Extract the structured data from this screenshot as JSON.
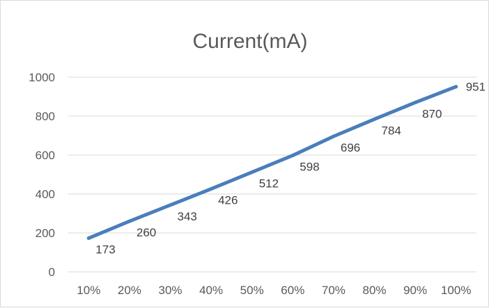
{
  "chart_data": {
    "type": "line",
    "title": "Current(mA)",
    "categories": [
      "10%",
      "20%",
      "30%",
      "40%",
      "50%",
      "60%",
      "70%",
      "80%",
      "90%",
      "100%"
    ],
    "series": [
      {
        "values": [
          173,
          260,
          343,
          426,
          512,
          598,
          696,
          784,
          870,
          951
        ],
        "color": "#4a7ebb"
      }
    ],
    "yticks": [
      "0",
      "200",
      "400",
      "600",
      "800",
      "1000"
    ],
    "ylim": [
      0,
      1000
    ],
    "grid": true,
    "legend": "none",
    "data_labels": [
      "173",
      "260",
      "343",
      "426",
      "512",
      "598",
      "696",
      "784",
      "870",
      "951"
    ]
  }
}
